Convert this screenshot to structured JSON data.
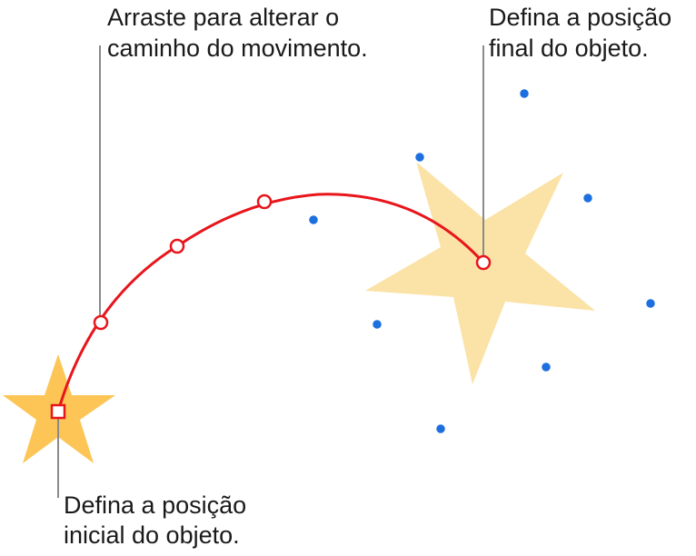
{
  "callouts": [
    {
      "lines": [
        "Arraste para alterar o",
        "caminho do movimento."
      ]
    },
    {
      "lines": [
        "Defina a posição",
        "final do objeto."
      ]
    },
    {
      "lines": [
        "Defina a posição",
        "inicial do objeto."
      ]
    }
  ]
}
